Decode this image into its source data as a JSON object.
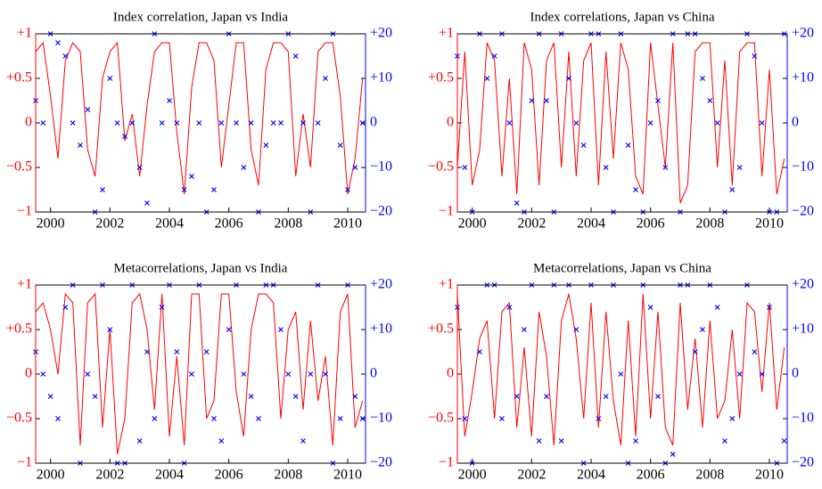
{
  "chart_data": [
    {
      "type": "line",
      "title": "Index correlation, Japan vs India",
      "xlim": [
        1999.5,
        2010.6
      ],
      "xticks": [
        2000,
        2002,
        2004,
        2006,
        2008,
        2010
      ],
      "ylim": [
        -1,
        1
      ],
      "yticks": [
        {
          "value": -1,
          "label": "−1"
        },
        {
          "value": -0.5,
          "label": "−0.5"
        },
        0,
        {
          "value": 0.5,
          "label": "+0.5"
        },
        {
          "value": 1,
          "label": "+1"
        }
      ],
      "y2lim": [
        -20,
        20
      ],
      "y2ticks": [
        {
          "value": -20,
          "label": "−20"
        },
        {
          "value": -10,
          "label": "−10"
        },
        0,
        {
          "value": 10,
          "label": "+10"
        },
        {
          "value": 20,
          "label": "+20"
        }
      ],
      "x": [
        1999.5,
        1999.75,
        2000,
        2000.25,
        2000.5,
        2000.75,
        2001,
        2001.25,
        2001.5,
        2001.75,
        2002,
        2002.25,
        2002.5,
        2002.75,
        2003,
        2003.25,
        2003.5,
        2003.75,
        2004,
        2004.25,
        2004.5,
        2004.75,
        2005,
        2005.25,
        2005.5,
        2005.75,
        2006,
        2006.25,
        2006.5,
        2006.75,
        2007,
        2007.25,
        2007.5,
        2007.75,
        2008,
        2008.25,
        2008.5,
        2008.75,
        2009,
        2009.25,
        2009.5,
        2009.75,
        2010,
        2010.25,
        2010.5
      ],
      "series": [
        {
          "type": "line",
          "color": "#ff0000",
          "values": [
            0.8,
            0.9,
            0.3,
            -0.4,
            0.7,
            0.9,
            0.8,
            -0.3,
            -0.6,
            0.5,
            0.8,
            0.9,
            -0.2,
            0.1,
            -0.6,
            0.2,
            0.8,
            0.9,
            0.9,
            -0.1,
            -0.8,
            0.4,
            0.9,
            0.9,
            0.7,
            -0.5,
            0.2,
            0.9,
            0.9,
            -0.3,
            -0.7,
            0.6,
            0.9,
            0.9,
            0.8,
            -0.6,
            0.1,
            -0.5,
            0.8,
            0.9,
            0.9,
            0.3,
            -0.8,
            -0.4,
            0.5
          ]
        },
        {
          "type": "scatter",
          "axis": "y2",
          "color": "#0000ff",
          "values": [
            5,
            0,
            20,
            18,
            15,
            0,
            -5,
            3,
            -20,
            -15,
            10,
            0,
            -3,
            0,
            -10,
            -18,
            20,
            0,
            5,
            0,
            -15,
            -12,
            0,
            -20,
            -15,
            0,
            20,
            0,
            -10,
            0,
            -20,
            -5,
            0,
            0,
            20,
            15,
            0,
            -20,
            0,
            10,
            20,
            -5,
            -15,
            -10,
            0
          ]
        }
      ]
    },
    {
      "type": "line",
      "title": "Index correlations, Japan vs China",
      "xlim": [
        1999.5,
        2010.6
      ],
      "xticks": [
        2000,
        2002,
        2004,
        2006,
        2008,
        2010
      ],
      "ylim": [
        -1,
        1
      ],
      "yticks": [
        {
          "value": -1,
          "label": "−1"
        },
        {
          "value": -0.5,
          "label": "−0.5"
        },
        0,
        {
          "value": 0.5,
          "label": "+0.5"
        },
        {
          "value": 1,
          "label": "+1"
        }
      ],
      "y2lim": [
        -20,
        20
      ],
      "y2ticks": [
        {
          "value": -20,
          "label": "−20"
        },
        {
          "value": -10,
          "label": "−10"
        },
        0,
        {
          "value": 10,
          "label": "+10"
        },
        {
          "value": 20,
          "label": "+20"
        }
      ],
      "x": [
        1999.5,
        1999.75,
        2000,
        2000.25,
        2000.5,
        2000.75,
        2001,
        2001.25,
        2001.5,
        2001.75,
        2002,
        2002.25,
        2002.5,
        2002.75,
        2003,
        2003.25,
        2003.5,
        2003.75,
        2004,
        2004.25,
        2004.5,
        2004.75,
        2005,
        2005.25,
        2005.5,
        2005.75,
        2006,
        2006.25,
        2006.5,
        2006.75,
        2007,
        2007.25,
        2007.5,
        2007.75,
        2008,
        2008.25,
        2008.5,
        2008.75,
        2009,
        2009.25,
        2009.5,
        2009.75,
        2010,
        2010.25,
        2010.5
      ],
      "series": [
        {
          "type": "line",
          "color": "#ff0000",
          "values": [
            -0.5,
            0.8,
            -0.7,
            -0.3,
            0.9,
            0.7,
            -0.6,
            0.5,
            -0.8,
            0.9,
            0.6,
            -0.7,
            0.7,
            0.9,
            -0.5,
            0.8,
            -0.6,
            0.7,
            0.9,
            -0.7,
            0.8,
            -0.4,
            0.9,
            0.6,
            -0.6,
            -0.8,
            0.9,
            0.2,
            -0.5,
            0.9,
            -0.9,
            -0.7,
            0.8,
            0.9,
            0.9,
            -0.5,
            0.7,
            -0.7,
            0.8,
            0.9,
            0.9,
            -0.6,
            0.6,
            -0.8,
            -0.4
          ]
        },
        {
          "type": "scatter",
          "axis": "y2",
          "color": "#0000ff",
          "values": [
            15,
            -10,
            -20,
            20,
            10,
            15,
            20,
            0,
            -18,
            -20,
            5,
            20,
            5,
            -20,
            20,
            10,
            0,
            -5,
            20,
            20,
            -10,
            -20,
            20,
            -5,
            -15,
            -20,
            0,
            5,
            -10,
            20,
            -20,
            20,
            20,
            10,
            5,
            0,
            -20,
            -15,
            -10,
            20,
            15,
            0,
            -20,
            -20,
            20
          ]
        }
      ]
    },
    {
      "type": "line",
      "title": "Metacorrelations, Japan vs India",
      "xlim": [
        1999.5,
        2010.6
      ],
      "xticks": [
        2000,
        2002,
        2004,
        2006,
        2008,
        2010
      ],
      "ylim": [
        -1,
        1
      ],
      "yticks": [
        {
          "value": -1,
          "label": "−1"
        },
        {
          "value": -0.5,
          "label": "−0.5"
        },
        0,
        {
          "value": 0.5,
          "label": "+0.5"
        },
        {
          "value": 1,
          "label": "+1"
        }
      ],
      "y2lim": [
        -20,
        20
      ],
      "y2ticks": [
        {
          "value": -20,
          "label": "−20"
        },
        {
          "value": -10,
          "label": "−10"
        },
        0,
        {
          "value": 10,
          "label": "+10"
        },
        {
          "value": 20,
          "label": "+20"
        }
      ],
      "x": [
        1999.5,
        1999.75,
        2000,
        2000.25,
        2000.5,
        2000.75,
        2001,
        2001.25,
        2001.5,
        2001.75,
        2002,
        2002.25,
        2002.5,
        2002.75,
        2003,
        2003.25,
        2003.5,
        2003.75,
        2004,
        2004.25,
        2004.5,
        2004.75,
        2005,
        2005.25,
        2005.5,
        2005.75,
        2006,
        2006.25,
        2006.5,
        2006.75,
        2007,
        2007.25,
        2007.5,
        2007.75,
        2008,
        2008.25,
        2008.5,
        2008.75,
        2009,
        2009.25,
        2009.5,
        2009.75,
        2010,
        2010.25,
        2010.5
      ],
      "series": [
        {
          "type": "line",
          "color": "#ff0000",
          "values": [
            0.7,
            0.8,
            0.5,
            0,
            0.9,
            0.8,
            -0.8,
            0.8,
            0.9,
            -0.6,
            0.5,
            -0.9,
            -0.5,
            0.8,
            0.9,
            0.5,
            -0.4,
            0.9,
            -0.7,
            0.2,
            -0.8,
            0.9,
            0.9,
            -0.5,
            -0.3,
            0.9,
            0.9,
            -0.2,
            -0.7,
            0.5,
            0.9,
            0.9,
            0.8,
            -0.5,
            0.5,
            0.7,
            -0.4,
            0.6,
            -0.3,
            0.2,
            -0.8,
            0.7,
            0.9,
            -0.6,
            -0.3
          ]
        },
        {
          "type": "scatter",
          "axis": "y2",
          "color": "#0000ff",
          "values": [
            5,
            0,
            -5,
            -10,
            15,
            20,
            -20,
            0,
            -5,
            20,
            10,
            -20,
            -20,
            20,
            -15,
            5,
            -10,
            15,
            20,
            5,
            -20,
            0,
            20,
            5,
            -10,
            -15,
            10,
            20,
            0,
            -5,
            -10,
            20,
            20,
            10,
            0,
            -5,
            -15,
            0,
            20,
            0,
            -20,
            -10,
            20,
            -5,
            -10
          ]
        }
      ]
    },
    {
      "type": "line",
      "title": "Metacorrelations, Japan vs China",
      "xlim": [
        1999.5,
        2010.6
      ],
      "xticks": [
        2000,
        2002,
        2004,
        2006,
        2008,
        2010
      ],
      "ylim": [
        -1,
        1
      ],
      "yticks": [
        {
          "value": -1,
          "label": "−1"
        },
        {
          "value": -0.5,
          "label": "−0.5"
        },
        0,
        {
          "value": 0.5,
          "label": "+0.5"
        },
        {
          "value": 1,
          "label": "+1"
        }
      ],
      "y2lim": [
        -20,
        20
      ],
      "y2ticks": [
        {
          "value": -20,
          "label": "−20"
        },
        {
          "value": -10,
          "label": "−10"
        },
        0,
        {
          "value": 10,
          "label": "+10"
        },
        {
          "value": 20,
          "label": "+20"
        }
      ],
      "x": [
        1999.5,
        1999.75,
        2000,
        2000.25,
        2000.5,
        2000.75,
        2001,
        2001.25,
        2001.5,
        2001.75,
        2002,
        2002.25,
        2002.5,
        2002.75,
        2003,
        2003.25,
        2003.5,
        2003.75,
        2004,
        2004.25,
        2004.5,
        2004.75,
        2005,
        2005.25,
        2005.5,
        2005.75,
        2006,
        2006.25,
        2006.5,
        2006.75,
        2007,
        2007.25,
        2007.5,
        2007.75,
        2008,
        2008.25,
        2008.5,
        2008.75,
        2009,
        2009.25,
        2009.5,
        2009.75,
        2010,
        2010.25,
        2010.5
      ],
      "series": [
        {
          "type": "line",
          "color": "#ff0000",
          "values": [
            0.9,
            -0.7,
            -0.2,
            0.4,
            0.6,
            -0.5,
            0.7,
            0.8,
            -0.6,
            0.3,
            -0.7,
            0.7,
            0.2,
            -0.8,
            0.6,
            0.9,
            0.4,
            -0.5,
            0.8,
            -0.6,
            0.7,
            -0.3,
            -0.8,
            0.6,
            -0.7,
            0.9,
            -0.5,
            0.7,
            -0.6,
            -0.8,
            0.8,
            -0.4,
            0.4,
            -0.6,
            0.6,
            -0.5,
            -0.3,
            0.5,
            -0.5,
            0.8,
            0.7,
            -0.2,
            0.8,
            -0.4,
            0.3
          ]
        },
        {
          "type": "scatter",
          "axis": "y2",
          "color": "#0000ff",
          "values": [
            15,
            -10,
            -20,
            5,
            20,
            20,
            -10,
            15,
            -5,
            10,
            20,
            -15,
            -5,
            20,
            -15,
            20,
            10,
            -20,
            20,
            -10,
            -5,
            20,
            0,
            -20,
            -15,
            20,
            15,
            -5,
            -20,
            -18,
            20,
            20,
            5,
            10,
            20,
            15,
            -15,
            -10,
            0,
            20,
            5,
            0,
            15,
            -20,
            -15
          ]
        }
      ]
    }
  ]
}
